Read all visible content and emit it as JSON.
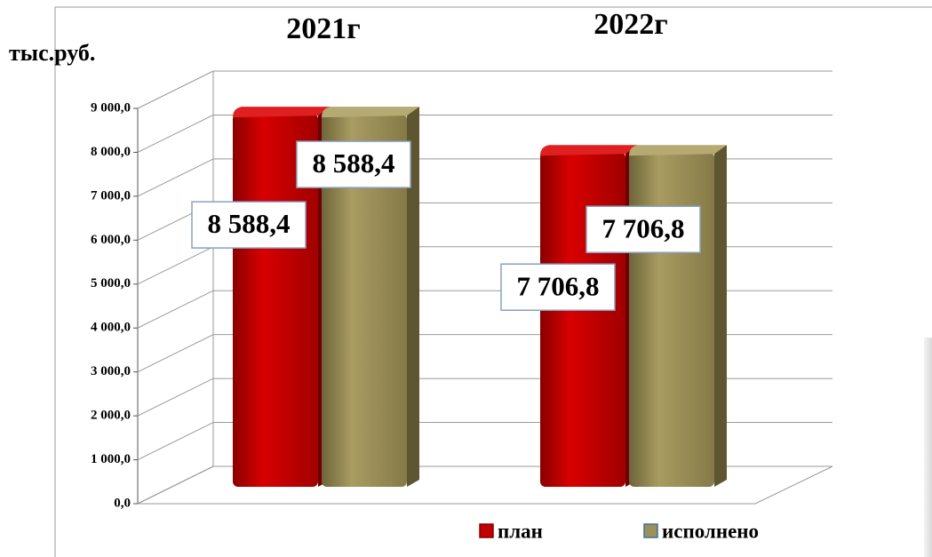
{
  "chart_data": {
    "type": "bar3d",
    "y_label": "тыс.руб.",
    "categories": [
      "2021г",
      "2022г"
    ],
    "series": [
      {
        "name": "план",
        "color": "#c00000",
        "values": [
          8588.4,
          7706.8
        ],
        "value_labels": [
          "8 588,4",
          "7 706,8"
        ]
      },
      {
        "name": "исполнено",
        "color": "#9c9158",
        "values": [
          8588.4,
          7706.8
        ],
        "value_labels": [
          "8 588,4",
          "7 706,8"
        ]
      }
    ],
    "ylim": [
      0,
      9000
    ],
    "yticks": [
      {
        "value": 0,
        "label": "0,0"
      },
      {
        "value": 1000,
        "label": "1 000,0"
      },
      {
        "value": 2000,
        "label": "2 000,0"
      },
      {
        "value": 3000,
        "label": "3 000,0"
      },
      {
        "value": 4000,
        "label": "4 000,0"
      },
      {
        "value": 5000,
        "label": "5 000,0"
      },
      {
        "value": 6000,
        "label": "6 000,0"
      },
      {
        "value": 7000,
        "label": "7 000,0"
      },
      {
        "value": 8000,
        "label": "8 000,0"
      },
      {
        "value": 9000,
        "label": "9 000,0"
      }
    ],
    "grid": true,
    "legend": "bottom"
  }
}
